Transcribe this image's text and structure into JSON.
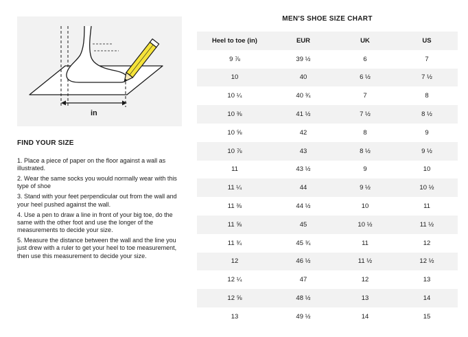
{
  "illustration": {
    "measure_label": "in"
  },
  "find_your_size": {
    "title": "FIND YOUR SIZE",
    "steps": [
      "1. Place a piece of paper on the floor against a wall as illustrated.",
      "2. Wear the same socks you would normally wear with this type of shoe",
      "3. Stand with your feet perpendicular out from the wall and your heel pushed against the wall.",
      "4. Use a pen to draw a line in front of your big toe, do the same with the other foot and use the longer of the measurements to decide your size.",
      "5. Measure the distance between the wall and the line you just drew with a ruler to get your heel to toe measurement, then use this measurement to decide your size."
    ]
  },
  "size_chart": {
    "title": "MEN'S SHOE SIZE CHART",
    "columns": [
      "Heel to toe (in)",
      "EUR",
      "UK",
      "US"
    ],
    "rows": [
      [
        "9 ⅞",
        "39 ½",
        "6",
        "7"
      ],
      [
        "10",
        "40",
        "6 ½",
        "7 ½"
      ],
      [
        "10 ¼",
        "40 ¾",
        "7",
        "8"
      ],
      [
        "10 ⅜",
        "41 ½",
        "7 ½",
        "8 ½"
      ],
      [
        "10 ⅝",
        "42",
        "8",
        "9"
      ],
      [
        "10 ⅞",
        "43",
        "8 ½",
        "9 ½"
      ],
      [
        "11",
        "43 ½",
        "9",
        "10"
      ],
      [
        "11 ¼",
        "44",
        "9 ½",
        "10 ½"
      ],
      [
        "11 ⅜",
        "44 ½",
        "10",
        "11"
      ],
      [
        "11 ⅝",
        "45",
        "10 ½",
        "11 ½"
      ],
      [
        "11 ¾",
        "45 ¾",
        "11",
        "12"
      ],
      [
        "12",
        "46 ½",
        "11 ½",
        "12 ½"
      ],
      [
        "12 ¼",
        "47",
        "12",
        "13"
      ],
      [
        "12 ⅝",
        "48 ½",
        "13",
        "14"
      ],
      [
        "13",
        "49 ½",
        "14",
        "15"
      ]
    ]
  },
  "colors": {
    "text": "#1a1a1a",
    "shade": "#f2f2f2",
    "pencil_yellow": "#f5e33a"
  }
}
